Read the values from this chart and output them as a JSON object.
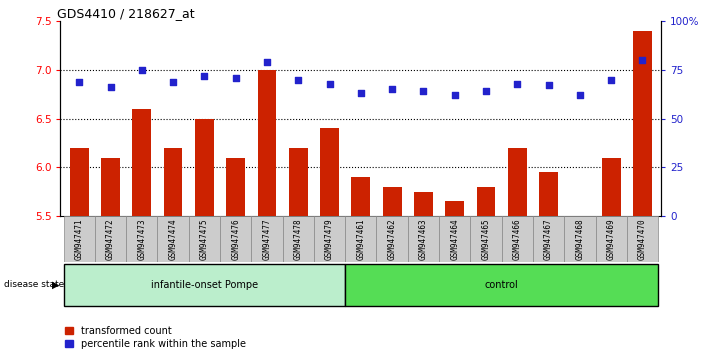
{
  "title": "GDS4410 / 218627_at",
  "samples": [
    "GSM947471",
    "GSM947472",
    "GSM947473",
    "GSM947474",
    "GSM947475",
    "GSM947476",
    "GSM947477",
    "GSM947478",
    "GSM947479",
    "GSM947461",
    "GSM947462",
    "GSM947463",
    "GSM947464",
    "GSM947465",
    "GSM947466",
    "GSM947467",
    "GSM947468",
    "GSM947469",
    "GSM947470"
  ],
  "red_values": [
    6.2,
    6.1,
    6.6,
    6.2,
    6.5,
    6.1,
    7.0,
    6.2,
    6.4,
    5.9,
    5.8,
    5.75,
    5.65,
    5.8,
    6.2,
    5.95,
    5.5,
    6.1,
    7.4
  ],
  "blue_values": [
    69,
    66,
    75,
    69,
    72,
    71,
    79,
    70,
    68,
    63,
    65,
    64,
    62,
    64,
    68,
    67,
    62,
    70,
    80
  ],
  "ylim_left": [
    5.5,
    7.5
  ],
  "ylim_right": [
    0,
    100
  ],
  "yticks_left": [
    5.5,
    6.0,
    6.5,
    7.0,
    7.5
  ],
  "yticks_right": [
    0,
    25,
    50,
    75,
    100
  ],
  "ytick_labels_right": [
    "0",
    "25",
    "50",
    "75",
    "100%"
  ],
  "dotted_lines": [
    6.0,
    6.5,
    7.0
  ],
  "group1_label": "infantile-onset Pompe",
  "group2_label": "control",
  "group1_count": 9,
  "group2_count": 10,
  "disease_state_label": "disease state",
  "legend_red": "transformed count",
  "legend_blue": "percentile rank within the sample",
  "bar_color": "#CC2200",
  "dot_color": "#2222CC",
  "group1_bg": "#BBEECC",
  "group2_bg": "#55DD55",
  "sample_bg": "#CCCCCC",
  "bar_width": 0.6,
  "dot_size": 15
}
